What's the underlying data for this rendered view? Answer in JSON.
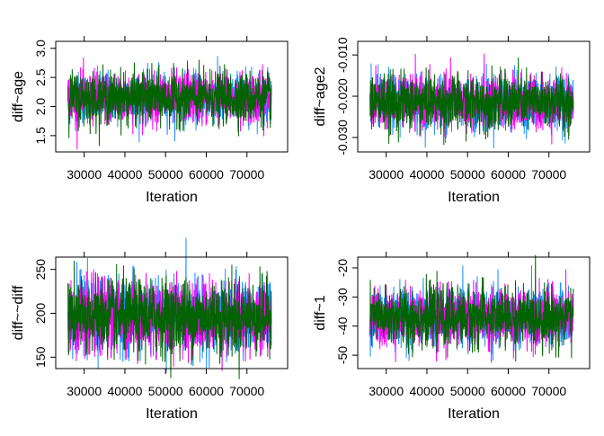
{
  "chart_data": [
    {
      "type": "line",
      "ylabel": "diff~age",
      "xlabel": "Iteration",
      "xlim": [
        23000,
        80000
      ],
      "ylim": [
        1.22,
        3.12
      ],
      "xticks": [
        30000,
        40000,
        50000,
        60000,
        70000
      ],
      "yticks": [
        "1.5",
        "2.0",
        "2.5",
        "3.0"
      ],
      "x_range": [
        26000,
        76000
      ],
      "series": [
        {
          "color": "#1E90FF",
          "mean": 2.15,
          "sd": 0.22
        },
        {
          "color": "#FF00FF",
          "mean": 2.15,
          "sd": 0.22
        },
        {
          "color": "#006400",
          "mean": 2.15,
          "sd": 0.22
        }
      ]
    },
    {
      "type": "line",
      "ylabel": "diff~age2",
      "xlabel": "Iteration",
      "xlim": [
        23000,
        80000
      ],
      "ylim": [
        -0.0335,
        -0.0067
      ],
      "xticks": [
        30000,
        40000,
        50000,
        60000,
        70000
      ],
      "yticks": [
        "-0.030",
        "-0.020",
        "-0.010"
      ],
      "x_range": [
        26000,
        76000
      ],
      "series": [
        {
          "color": "#1E90FF",
          "mean": -0.0215,
          "sd": 0.0033
        },
        {
          "color": "#FF00FF",
          "mean": -0.0215,
          "sd": 0.0033
        },
        {
          "color": "#006400",
          "mean": -0.0215,
          "sd": 0.0033
        }
      ]
    },
    {
      "type": "line",
      "ylabel": "diff~~diff",
      "xlabel": "Iteration",
      "xlim": [
        23000,
        80000
      ],
      "ylim": [
        137,
        264
      ],
      "xticks": [
        30000,
        40000,
        50000,
        60000,
        70000
      ],
      "yticks": [
        "150",
        "200",
        "250"
      ],
      "x_range": [
        26000,
        76000
      ],
      "series": [
        {
          "color": "#1E90FF",
          "mean": 196,
          "sd": 21
        },
        {
          "color": "#FF00FF",
          "mean": 196,
          "sd": 21
        },
        {
          "color": "#006400",
          "mean": 196,
          "sd": 21
        }
      ]
    },
    {
      "type": "line",
      "ylabel": "diff~1",
      "xlabel": "Iteration",
      "xlim": [
        23000,
        80000
      ],
      "ylim": [
        -54.6,
        -16.3
      ],
      "xticks": [
        30000,
        40000,
        50000,
        60000,
        70000
      ],
      "yticks": [
        "-50",
        "-40",
        "-30",
        "-20"
      ],
      "x_range": [
        26000,
        76000
      ],
      "series": [
        {
          "color": "#1E90FF",
          "mean": -37,
          "sd": 5
        },
        {
          "color": "#FF00FF",
          "mean": -37,
          "sd": 5
        },
        {
          "color": "#006400",
          "mean": -37,
          "sd": 5
        }
      ]
    }
  ]
}
